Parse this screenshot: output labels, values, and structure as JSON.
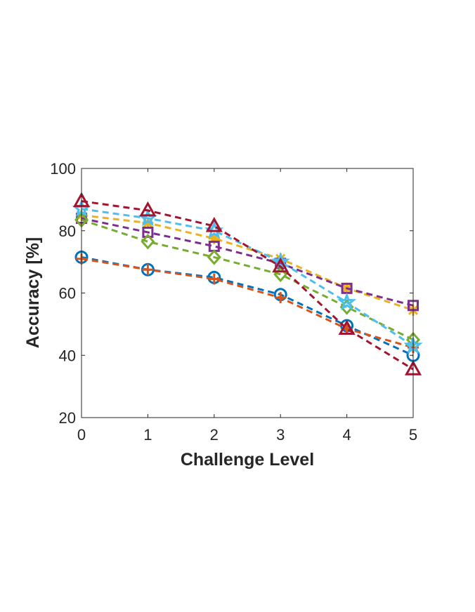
{
  "chart_data": {
    "type": "line",
    "title": "",
    "xlabel": "Challenge Level",
    "ylabel": "Accuracy [%]",
    "xlim": [
      0,
      5
    ],
    "ylim": [
      20,
      100
    ],
    "x": [
      0,
      1,
      2,
      3,
      4,
      5
    ],
    "xticks": [
      "0",
      "1",
      "2",
      "3",
      "4",
      "5"
    ],
    "yticks": [
      "20",
      "40",
      "60",
      "80",
      "100"
    ],
    "grid": false,
    "legend": "none",
    "series": [
      {
        "color": "#0072BD",
        "marker": "circle",
        "values": [
          71.5,
          67.5,
          65,
          59.5,
          49.5,
          40
        ]
      },
      {
        "color": "#D95319",
        "marker": "plus",
        "values": [
          71,
          67.5,
          64.5,
          58.5,
          48.5,
          42.5
        ]
      },
      {
        "color": "#EDB120",
        "marker": "asterisk",
        "values": [
          85,
          82.5,
          77.5,
          71,
          61.5,
          54.5
        ]
      },
      {
        "color": "#7E2F8E",
        "marker": "square",
        "values": [
          84,
          79.5,
          75,
          69.5,
          61.5,
          56
        ]
      },
      {
        "color": "#77AC30",
        "marker": "diamond",
        "values": [
          83.5,
          76.5,
          71.5,
          66,
          55.5,
          45
        ]
      },
      {
        "color": "#4DBEEE",
        "marker": "star",
        "values": [
          87,
          84,
          80,
          70,
          57,
          43
        ]
      },
      {
        "color": "#A2142F",
        "marker": "triangle",
        "values": [
          89.5,
          86.5,
          81.5,
          68.5,
          48.5,
          35.5
        ]
      }
    ]
  }
}
